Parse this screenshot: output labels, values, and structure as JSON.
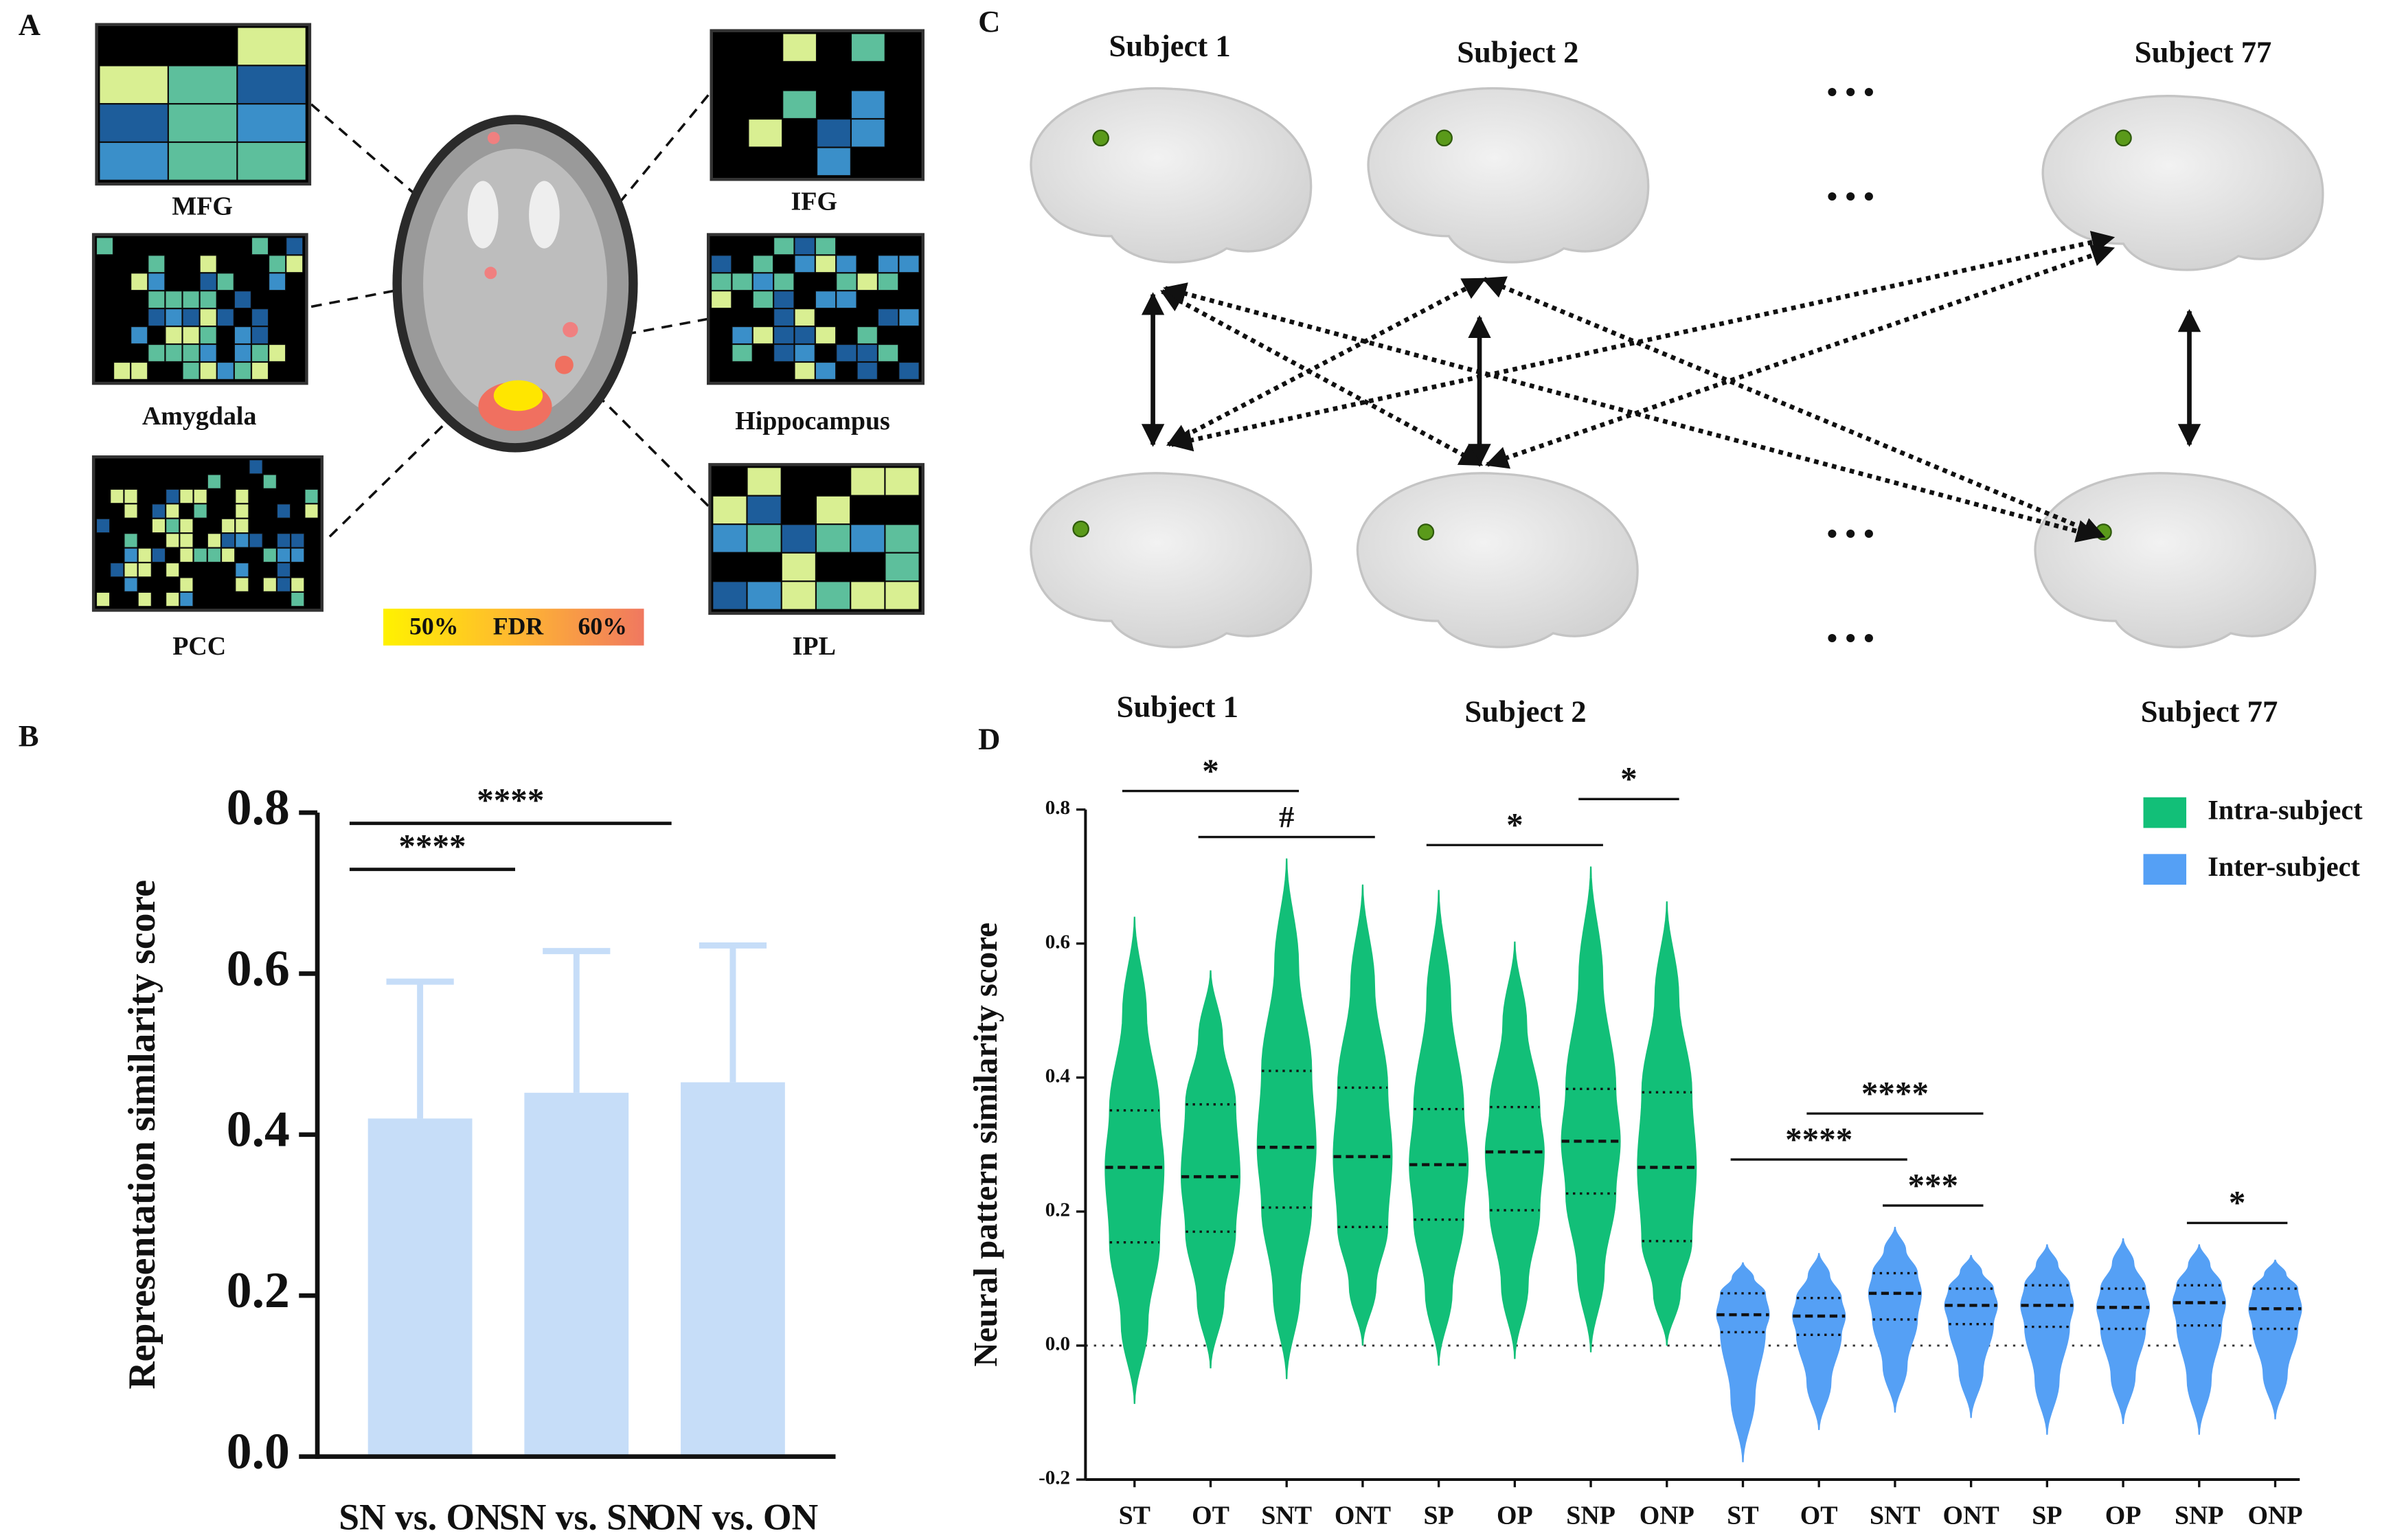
{
  "panel_labels": [
    "A",
    "B",
    "C",
    "D"
  ],
  "panel_a": {
    "regions": [
      "MFG",
      "Amygdala",
      "PCC",
      "IFG",
      "Hippocampus",
      "IPL"
    ],
    "colorbar": [
      "50%",
      "FDR",
      "60%"
    ]
  },
  "panel_c": {
    "top_labels": [
      "Subject 1",
      "Subject 2",
      "Subject 77"
    ],
    "bottom_labels": [
      "Subject 1",
      "Subject 2",
      "Subject 77"
    ],
    "ellipsis": "• • •"
  },
  "chart_data": [
    {
      "type": "bar",
      "ylabel": "Representation similarity score",
      "categories": [
        "SN vs. ON",
        "SN vs. SN",
        "ON vs. ON"
      ],
      "values": [
        0.42,
        0.452,
        0.465
      ],
      "errors": [
        0.17,
        0.176,
        0.17
      ],
      "color": "#c6ddf8",
      "ylim": [
        0,
        0.8
      ],
      "yticks": [
        {
          "value": 0,
          "label": "0.0"
        },
        0.2,
        0.4,
        0.6,
        0.8
      ],
      "annotations": [
        {
          "label": "****",
          "from": 0,
          "to": 1
        },
        {
          "label": "****",
          "from": 0,
          "to": 2
        }
      ]
    },
    {
      "type": "violin",
      "ylabel": "Neural pattern similarity score",
      "categories": [
        "ST",
        "OT",
        "SNT",
        "ONT",
        "SP",
        "OP",
        "SNP",
        "ONP"
      ],
      "ylim": [
        -0.2,
        0.8
      ],
      "yticks": [
        -0.2,
        {
          "value": 0,
          "label": "0.0"
        },
        0.2,
        0.4,
        0.6,
        0.8
      ],
      "legend": "top-right",
      "series": [
        {
          "name": "Intra-subject",
          "color": "#12bf78",
          "min": [
            -0.087,
            -0.034,
            -0.05,
            0,
            -0.03,
            -0.02,
            -0.01,
            0
          ],
          "q1": [
            0.154,
            0.17,
            0.206,
            0.177,
            0.188,
            0.202,
            0.227,
            0.156
          ],
          "median": [
            0.266,
            0.252,
            0.296,
            0.282,
            0.27,
            0.289,
            0.305,
            0.266
          ],
          "q3": [
            0.351,
            0.36,
            0.41,
            0.385,
            0.353,
            0.356,
            0.383,
            0.378
          ],
          "max": [
            0.64,
            0.56,
            0.727,
            0.688,
            0.68,
            0.603,
            0.715,
            0.663
          ],
          "annotations": [
            {
              "label": "#",
              "from": 1,
              "to": 3
            },
            {
              "label": "*",
              "from": 0,
              "to": 2
            },
            {
              "label": "*",
              "from": 4,
              "to": 6
            },
            {
              "label": "*",
              "from": 6,
              "to": 7
            }
          ]
        },
        {
          "name": "Inter-subject",
          "color": "#55a0f5",
          "min": [
            -0.174,
            -0.126,
            -0.1,
            -0.108,
            -0.133,
            -0.117,
            -0.133,
            -0.11
          ],
          "q1": [
            0.02,
            0.016,
            0.039,
            0.032,
            0.028,
            0.025,
            0.03,
            0.025
          ],
          "median": [
            0.046,
            0.044,
            0.078,
            0.06,
            0.06,
            0.057,
            0.064,
            0.055
          ],
          "q3": [
            0.078,
            0.071,
            0.108,
            0.085,
            0.09,
            0.085,
            0.09,
            0.085
          ],
          "max": [
            0.124,
            0.138,
            0.177,
            0.135,
            0.151,
            0.16,
            0.151,
            0.128
          ],
          "annotations": [
            {
              "label": "***",
              "from": 2,
              "to": 3
            },
            {
              "label": "****",
              "from": 0,
              "to": 2
            },
            {
              "label": "****",
              "from": 1,
              "to": 3
            },
            {
              "label": "*",
              "from": 6,
              "to": 7
            }
          ]
        }
      ]
    }
  ]
}
